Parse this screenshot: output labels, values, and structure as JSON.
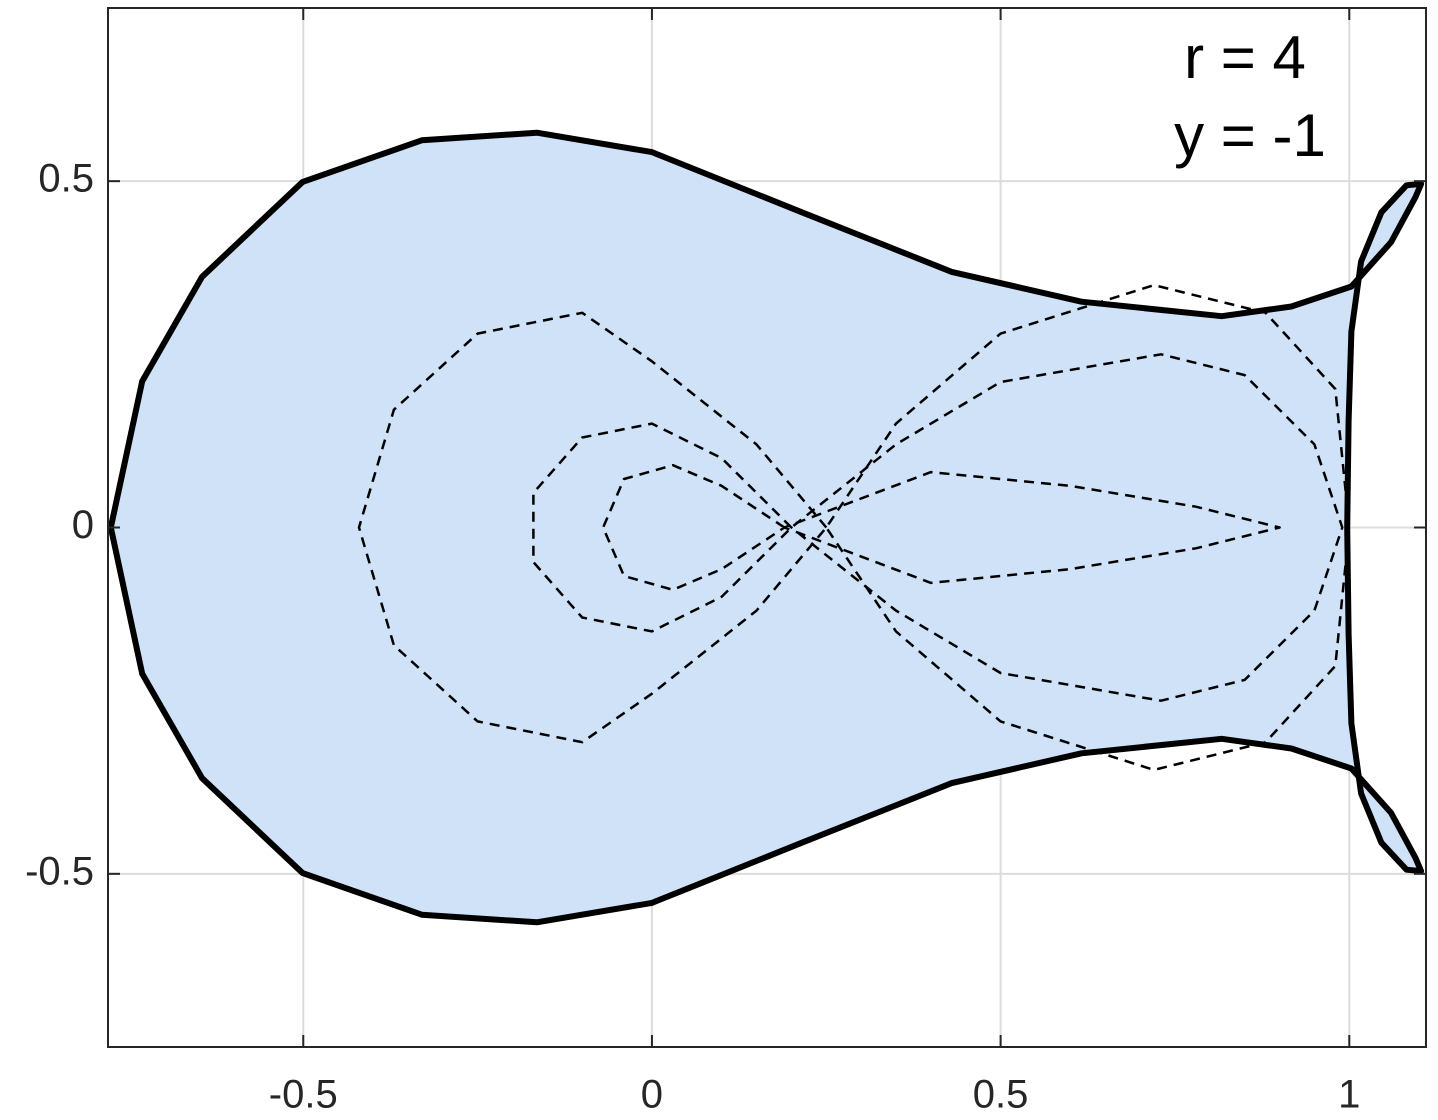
{
  "chart_data": {
    "type": "line",
    "annotations": [
      "r = 4",
      "y = -1"
    ],
    "xlim": [
      -0.78,
      1.11
    ],
    "ylim": [
      -0.75,
      0.75
    ],
    "xticks": [
      -0.5,
      0,
      0.5,
      1
    ],
    "yticks": [
      -0.5,
      0,
      0.5
    ],
    "grid": true,
    "series": [
      {
        "color": "#000000",
        "style": "solid",
        "fill": "#cfe2f7",
        "x": [
          -0.776,
          -0.731,
          -0.645,
          -0.501,
          -0.33,
          -0.165,
          0,
          0.215,
          0.43,
          0.616,
          0.817,
          0.917,
          1.003,
          1.06,
          1.095,
          1.103,
          1.082,
          1.046,
          1.017,
          1.003,
          0.999,
          0.997,
          0.999,
          1.003,
          1.017,
          1.046,
          1.082,
          1.103,
          1.095,
          1.06,
          1.003,
          0.917,
          0.817,
          0.616,
          0.43,
          0.215,
          0,
          -0.165,
          -0.33,
          -0.501,
          -0.645,
          -0.731,
          -0.776
        ],
        "y": [
          0,
          0.211,
          0.362,
          0.499,
          0.559,
          0.57,
          0.542,
          0.455,
          0.369,
          0.326,
          0.305,
          0.319,
          0.348,
          0.412,
          0.477,
          0.496,
          0.494,
          0.455,
          0.384,
          0.283,
          0.154,
          0,
          -0.154,
          -0.283,
          -0.384,
          -0.455,
          -0.494,
          -0.496,
          -0.477,
          -0.412,
          -0.348,
          -0.319,
          -0.305,
          -0.326,
          -0.369,
          -0.455,
          -0.542,
          -0.57,
          -0.559,
          -0.499,
          -0.362,
          -0.211,
          0
        ]
      },
      {
        "color": "#000000",
        "style": "dashed",
        "x": [
          0.25,
          0.15,
          0,
          -0.1,
          -0.25,
          -0.37,
          -0.42,
          -0.37,
          -0.25,
          -0.1,
          0,
          0.15,
          0.25,
          0.35,
          0.5,
          0.72,
          0.88,
          0.98,
          1.0,
          0.98,
          0.88,
          0.72,
          0.5,
          0.35,
          0.25
        ],
        "y": [
          0,
          0.12,
          0.24,
          0.31,
          0.28,
          0.17,
          0,
          -0.17,
          -0.28,
          -0.31,
          -0.24,
          -0.12,
          0,
          0.15,
          0.28,
          0.35,
          0.31,
          0.2,
          0,
          -0.2,
          -0.31,
          -0.35,
          -0.28,
          -0.15,
          0
        ]
      },
      {
        "color": "#000000",
        "style": "dashed",
        "x": [
          0.2,
          0.1,
          0,
          -0.1,
          -0.17,
          -0.17,
          -0.1,
          0,
          0.1,
          0.2,
          0.35,
          0.5,
          0.73,
          0.85,
          0.95,
          0.99,
          0.95,
          0.85,
          0.73,
          0.5,
          0.35,
          0.2
        ],
        "y": [
          0,
          0.1,
          0.15,
          0.13,
          0.05,
          -0.05,
          -0.13,
          -0.15,
          -0.1,
          0,
          0.12,
          0.21,
          0.25,
          0.22,
          0.12,
          0,
          -0.12,
          -0.22,
          -0.25,
          -0.21,
          -0.12,
          0
        ]
      },
      {
        "color": "#000000",
        "style": "dashed",
        "x": [
          0.19,
          0.1,
          0.03,
          -0.04,
          -0.07,
          -0.04,
          0.03,
          0.1,
          0.19,
          0.4,
          0.6,
          0.78,
          0.9,
          0.78,
          0.6,
          0.4,
          0.19
        ],
        "y": [
          0,
          0.06,
          0.09,
          0.07,
          0,
          -0.07,
          -0.09,
          -0.06,
          0,
          0.08,
          0.06,
          0.03,
          0,
          -0.03,
          -0.06,
          -0.08,
          0
        ]
      }
    ]
  }
}
